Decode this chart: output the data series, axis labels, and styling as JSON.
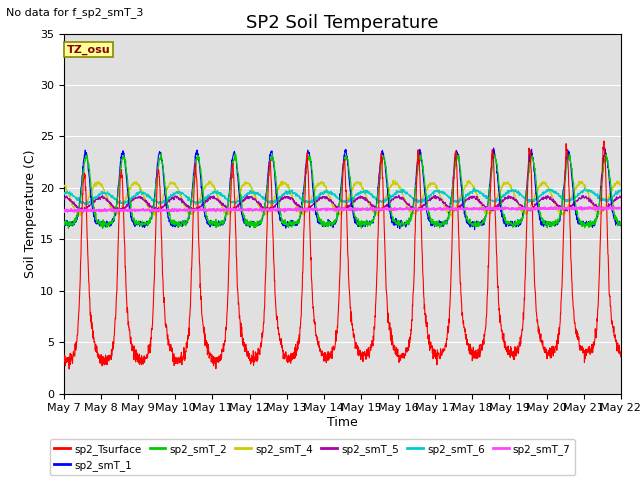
{
  "title": "SP2 Soil Temperature",
  "subtitle": "No data for f_sp2_smT_3",
  "xlabel": "Time",
  "ylabel": "Soil Temperature (C)",
  "tz_label": "TZ_osu",
  "ylim": [
    0,
    35
  ],
  "x_tick_labels": [
    "May 7",
    "May 8",
    "May 9",
    "May 10",
    "May 11",
    "May 12",
    "May 13",
    "May 14",
    "May 15",
    "May 16",
    "May 17",
    "May 18",
    "May 19",
    "May 20",
    "May 21",
    "May 22"
  ],
  "background_color": "#ffffff",
  "plot_bg_color": "#e0e0e0",
  "series": {
    "sp2_Tsurface": {
      "color": "#ff0000",
      "lw": 1.0
    },
    "sp2_smT_1": {
      "color": "#0000ff",
      "lw": 1.0
    },
    "sp2_smT_2": {
      "color": "#00cc00",
      "lw": 1.0
    },
    "sp2_smT_4": {
      "color": "#cccc00",
      "lw": 1.0
    },
    "sp2_smT_5": {
      "color": "#aa00aa",
      "lw": 1.0
    },
    "sp2_smT_6": {
      "color": "#00cccc",
      "lw": 1.0
    },
    "sp2_smT_7": {
      "color": "#ff44ff",
      "lw": 1.2
    }
  },
  "grid_color": "#ffffff",
  "title_fontsize": 13,
  "label_fontsize": 9,
  "tick_fontsize": 8
}
